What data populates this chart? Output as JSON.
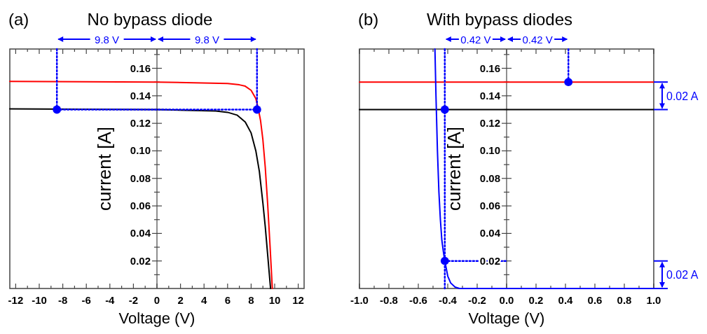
{
  "chart_data": [
    {
      "type": "line",
      "title": "No bypass diode",
      "xlabel": "Voltage (V)",
      "ylabel": "current [A]",
      "annotations": [
        "(a)",
        "9.8 V",
        "9.8 V"
      ],
      "xlim": [
        -12.5,
        12.5
      ],
      "ylim": [
        0,
        0.174
      ],
      "xticks": [
        -12,
        {
          "value": -11,
          "label": null
        },
        -10,
        {
          "value": -9,
          "label": null
        },
        -8,
        {
          "value": -7,
          "label": null
        },
        -6,
        {
          "value": -5,
          "label": null
        },
        -4,
        {
          "value": -3,
          "label": null
        },
        -2,
        {
          "value": -1,
          "label": null
        },
        0,
        {
          "value": 1,
          "label": null
        },
        2,
        {
          "value": 3,
          "label": null
        },
        4,
        {
          "value": 5,
          "label": null
        },
        6,
        {
          "value": 7,
          "label": null
        },
        8,
        {
          "value": 9,
          "label": null
        },
        10,
        {
          "value": 11,
          "label": null
        },
        12
      ],
      "yticks": [
        {
          "value": 0.01,
          "label": null
        },
        0.02,
        {
          "value": 0.03,
          "label": null
        },
        0.04,
        {
          "value": 0.05,
          "label": null
        },
        0.06,
        {
          "value": 0.07,
          "label": null
        },
        0.08,
        {
          "value": 0.09,
          "label": null
        },
        {
          "value": 0.1,
          "label": "0.10"
        },
        {
          "value": 0.11,
          "label": null
        },
        0.12,
        {
          "value": 0.13,
          "label": null
        },
        0.14,
        {
          "value": 0.15,
          "label": null
        },
        0.16,
        {
          "value": 0.17,
          "label": null
        }
      ],
      "marker": "none",
      "line_style": "solid",
      "series": [
        {
          "color": "#ff0000",
          "x": [
            -12.5,
            0,
            6,
            7,
            7.5,
            8,
            8.4,
            8.6,
            8.8,
            9.0,
            9.2,
            9.4,
            9.6,
            9.8
          ],
          "values": [
            0.1505,
            0.15,
            0.149,
            0.148,
            0.147,
            0.144,
            0.138,
            0.131,
            0.122,
            0.108,
            0.088,
            0.062,
            0.032,
            0
          ]
        },
        {
          "color": "#000000",
          "x": [
            -12.5,
            0,
            5,
            6,
            6.8,
            7.5,
            8,
            8.4,
            8.7,
            9.0,
            9.2,
            9.4,
            9.6,
            9.65
          ],
          "values": [
            0.1305,
            0.13,
            0.129,
            0.128,
            0.126,
            0.121,
            0.113,
            0.1,
            0.085,
            0.062,
            0.045,
            0.025,
            0.005,
            0
          ]
        },
        {
          "color": "#0000ff",
          "line_style": "dotted",
          "x": [
            -8.5,
            -8.5
          ],
          "values": [
            0.174,
            0.13
          ]
        },
        {
          "color": "#0000ff",
          "line_style": "dotted",
          "x": [
            -8.5,
            8.5
          ],
          "values": [
            0.13,
            0.13
          ]
        },
        {
          "color": "#0000ff",
          "line_style": "dotted",
          "x": [
            8.5,
            8.5
          ],
          "values": [
            0.13,
            0.174
          ]
        },
        {
          "type": "scatter",
          "color": "#0000ff",
          "marker": "circle",
          "x": [
            -8.5,
            8.5
          ],
          "values": [
            0.13,
            0.13
          ]
        }
      ]
    },
    {
      "type": "line",
      "title": "With bypass diodes",
      "xlabel": "Voltage (V)",
      "ylabel": "current [A]",
      "annotations": [
        "(b)",
        "0.42 V",
        "0.42 V",
        "0.02 A",
        "0.02 A"
      ],
      "xlim": [
        -1,
        1
      ],
      "ylim": [
        0,
        0.174
      ],
      "xticks": [
        {
          "value": -1,
          "label": "-1.0"
        },
        {
          "value": -0.9,
          "label": null
        },
        -0.8,
        {
          "value": -0.7,
          "label": null
        },
        -0.6,
        {
          "value": -0.5,
          "label": null
        },
        -0.4,
        {
          "value": -0.3,
          "label": null
        },
        -0.2,
        {
          "value": -0.1,
          "label": null
        },
        {
          "value": 0,
          "label": "0.0"
        },
        {
          "value": 0.1,
          "label": null
        },
        0.2,
        {
          "value": 0.3,
          "label": null
        },
        0.4,
        {
          "value": 0.5,
          "label": null
        },
        0.6,
        {
          "value": 0.7,
          "label": null
        },
        0.8,
        {
          "value": 0.9,
          "label": null
        },
        {
          "value": 1,
          "label": "1.0"
        }
      ],
      "yticks": [
        {
          "value": 0.01,
          "label": null
        },
        0.02,
        {
          "value": 0.03,
          "label": null
        },
        0.04,
        {
          "value": 0.05,
          "label": null
        },
        0.06,
        {
          "value": 0.07,
          "label": null
        },
        0.08,
        {
          "value": 0.09,
          "label": null
        },
        {
          "value": 0.1,
          "label": "0.10"
        },
        {
          "value": 0.11,
          "label": null
        },
        0.12,
        {
          "value": 0.13,
          "label": null
        },
        0.14,
        {
          "value": 0.15,
          "label": null
        },
        0.16,
        {
          "value": 0.17,
          "label": null
        }
      ],
      "marker": "none",
      "line_style": "solid",
      "series": [
        {
          "color": "#ff0000",
          "x": [
            -1,
            1
          ],
          "values": [
            0.15,
            0.15
          ]
        },
        {
          "color": "#000000",
          "x": [
            -1,
            1
          ],
          "values": [
            0.13,
            0.13
          ]
        },
        {
          "color": "#0000ff",
          "x": [
            -0.487,
            -0.48,
            -0.47,
            -0.46,
            -0.45,
            -0.44,
            -0.43,
            -0.42,
            -0.4,
            -0.38,
            -0.35,
            -0.32,
            1
          ],
          "values": [
            0.174,
            0.14,
            0.1,
            0.07,
            0.05,
            0.035,
            0.027,
            0.02,
            0.009,
            0.004,
            0.001,
            0,
            0
          ]
        },
        {
          "color": "#0000ff",
          "line_style": "dotted",
          "x": [
            -0.42,
            -0.42
          ],
          "values": [
            0,
            0.174
          ]
        },
        {
          "color": "#0000ff",
          "line_style": "dotted",
          "x": [
            -0.42,
            0
          ],
          "values": [
            0.02,
            0.02
          ]
        },
        {
          "color": "#0000ff",
          "line_style": "dotted",
          "x": [
            0.42,
            0.42
          ],
          "values": [
            0.15,
            0.174
          ]
        },
        {
          "type": "scatter",
          "color": "#0000ff",
          "marker": "circle",
          "x": [
            -0.42,
            0.42,
            -0.42
          ],
          "values": [
            0.13,
            0.15,
            0.02
          ]
        }
      ]
    }
  ]
}
